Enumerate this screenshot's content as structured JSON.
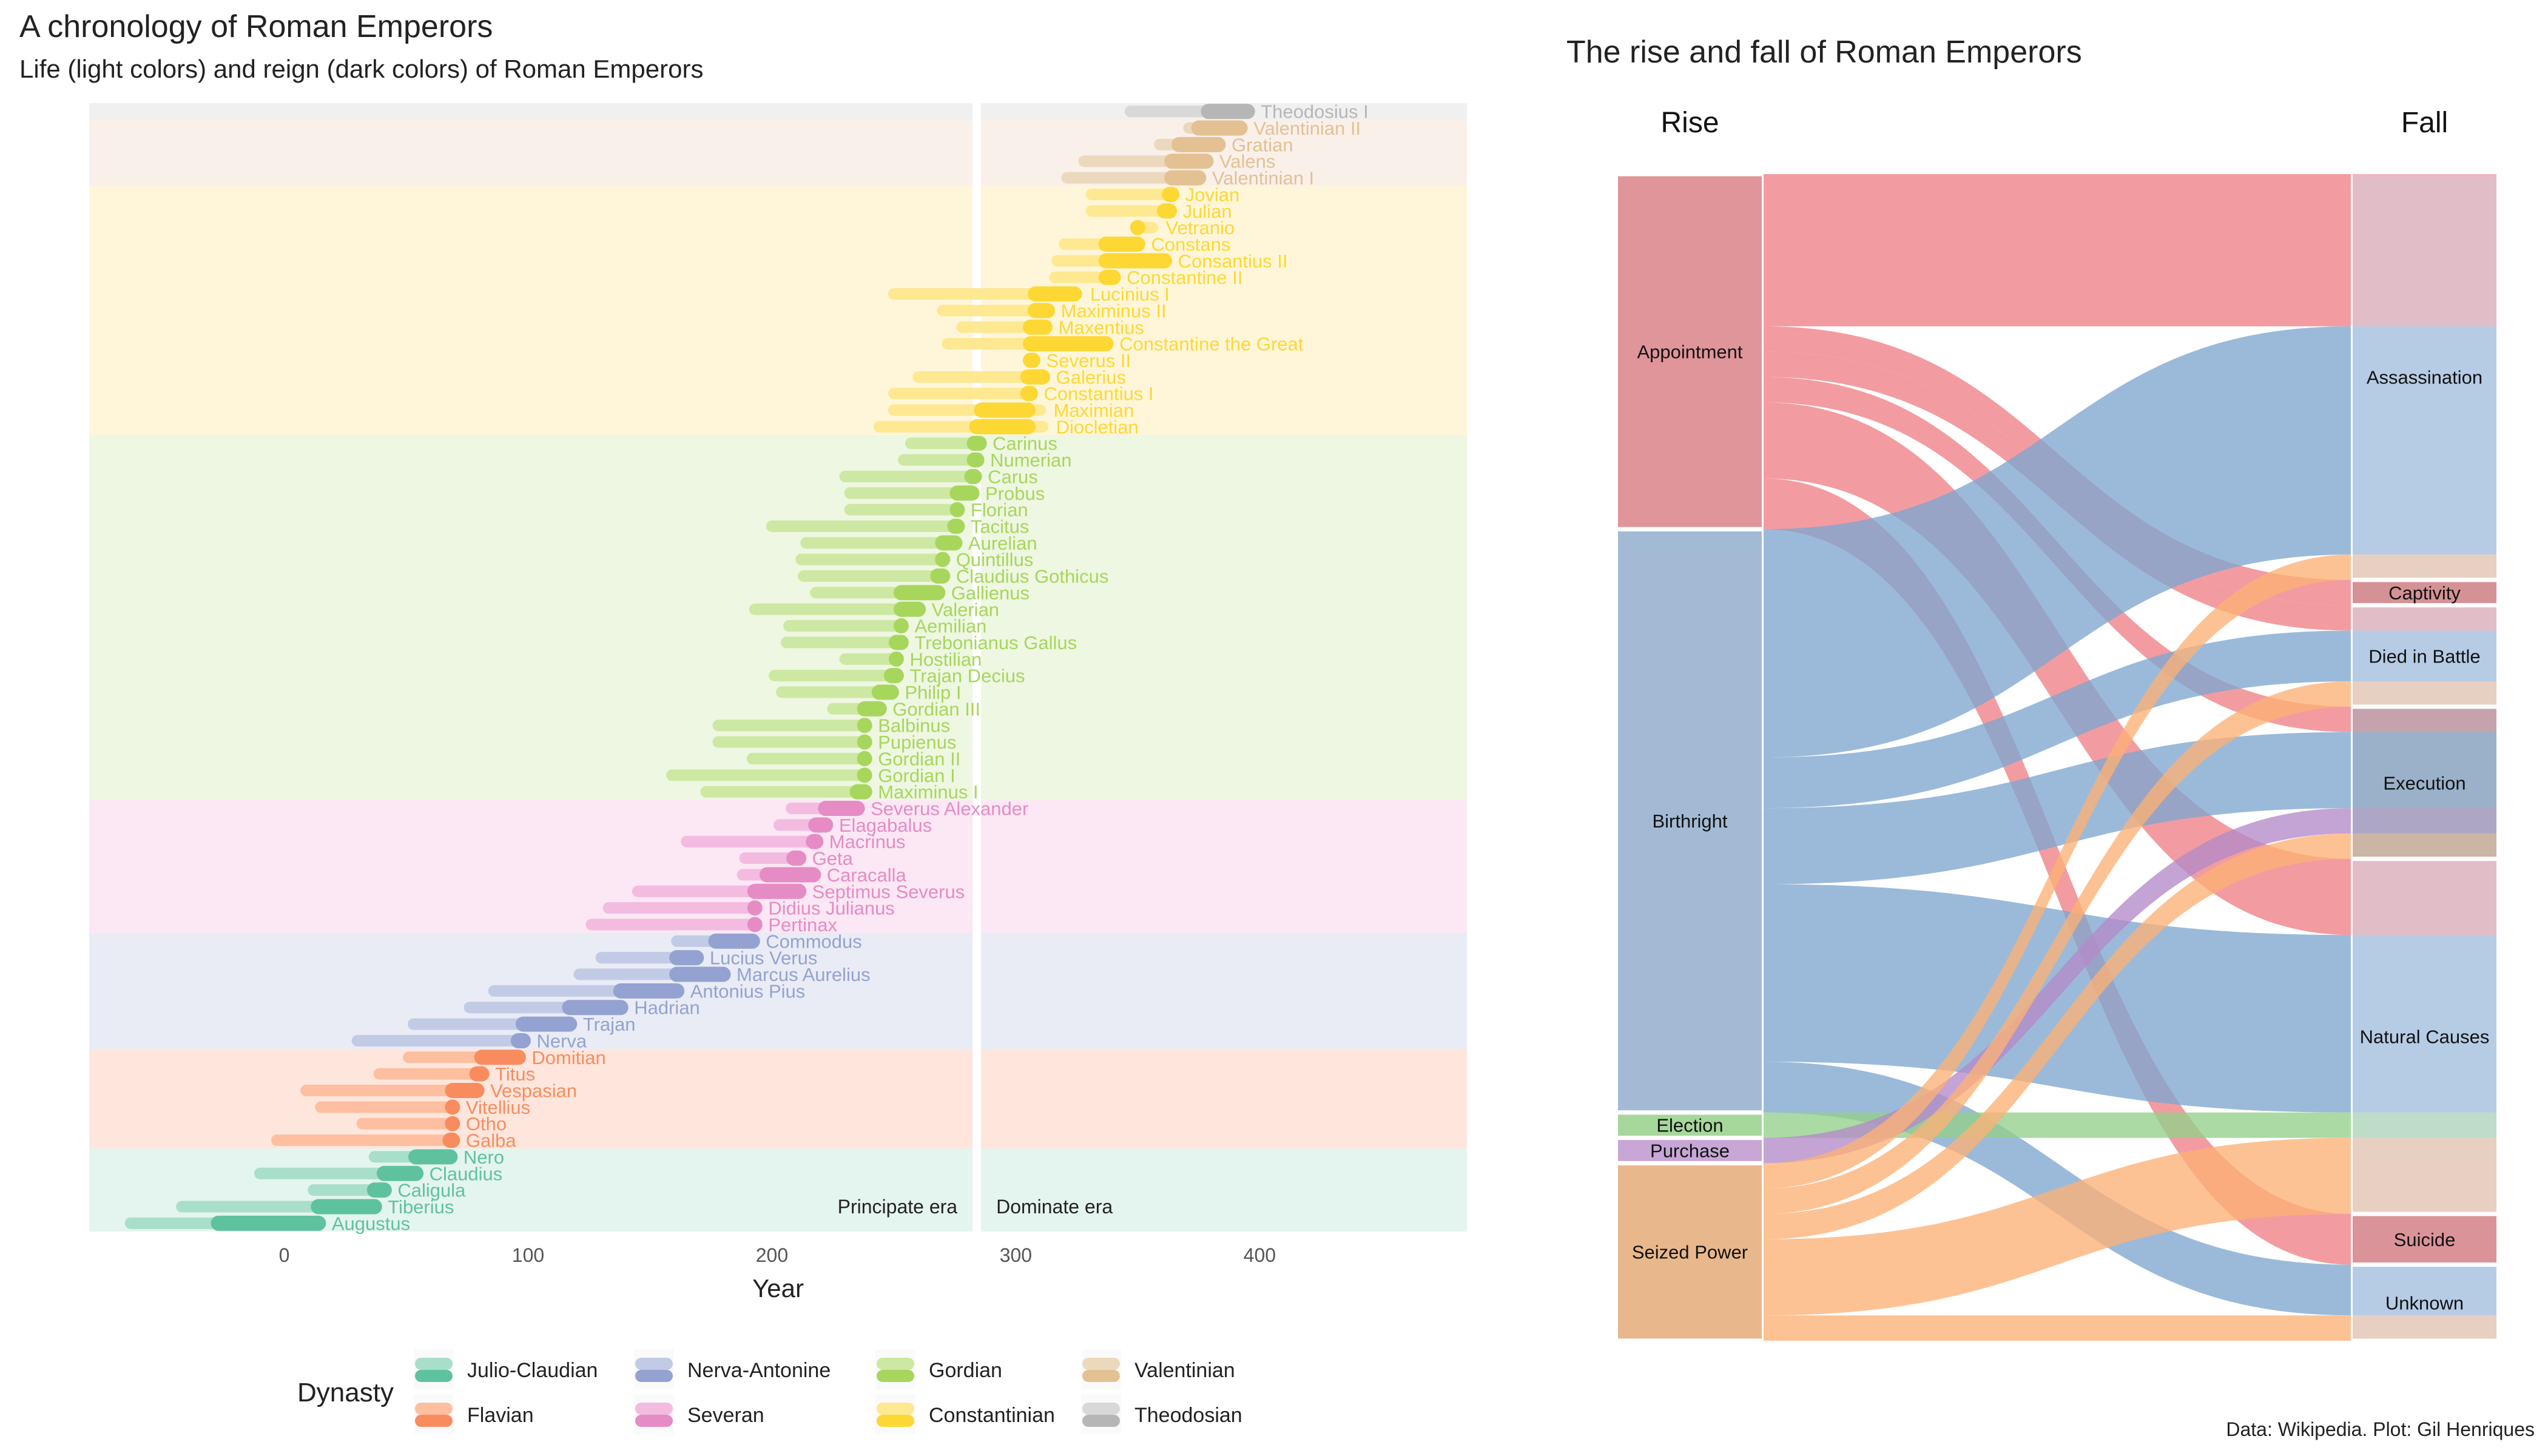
{
  "timeline": {
    "title": "A chronology of Roman Emperors",
    "subtitle": "Life (light colors) and reign (dark colors) of Roman Emperors",
    "xlabel": "Year",
    "x_ticks": [
      0,
      100,
      200,
      300,
      400
    ],
    "eras": [
      {
        "label": "Principate era",
        "start": -70,
        "end": 284
      },
      {
        "label": "Dominate era",
        "start": 284,
        "end": 485
      }
    ],
    "legend_title": "Dynasty",
    "dynasties": [
      {
        "name": "Julio-Claudian",
        "light": "#a8dfcb",
        "dark": "#5fc29f",
        "band": "#e4f4ee"
      },
      {
        "name": "Flavian",
        "light": "#fdbf9f",
        "dark": "#f98c5f",
        "band": "#fee6dc"
      },
      {
        "name": "Nerva-Antonine",
        "light": "#c2cbe6",
        "dark": "#94a2d1",
        "band": "#e9ecf5"
      },
      {
        "name": "Severan",
        "light": "#f3bbdf",
        "dark": "#e58cc4",
        "band": "#fce7f4"
      },
      {
        "name": "Gordian",
        "light": "#cde8a2",
        "dark": "#a7d65c",
        "band": "#eef7e1"
      },
      {
        "name": "Constantinian",
        "light": "#fee891",
        "dark": "#fdd834",
        "band": "#fff6d9"
      },
      {
        "name": "Valentinian",
        "light": "#ecd9bd",
        "dark": "#e3c193",
        "band": "#faf0ea"
      },
      {
        "name": "Theodosian",
        "light": "#d8d8d8",
        "dark": "#b6b6b6",
        "band": "#f0f0f0"
      }
    ],
    "emperors": [
      {
        "name": "Augustus",
        "dynasty": 0,
        "birth": -63,
        "death": 14,
        "reign_start": -27,
        "reign_end": 14
      },
      {
        "name": "Tiberius",
        "dynasty": 0,
        "birth": -42,
        "death": 37,
        "reign_start": 14,
        "reign_end": 37
      },
      {
        "name": "Caligula",
        "dynasty": 0,
        "birth": 12,
        "death": 41,
        "reign_start": 37,
        "reign_end": 41
      },
      {
        "name": "Claudius",
        "dynasty": 0,
        "birth": -10,
        "death": 54,
        "reign_start": 41,
        "reign_end": 54
      },
      {
        "name": "Nero",
        "dynasty": 0,
        "birth": 37,
        "death": 68,
        "reign_start": 54,
        "reign_end": 68
      },
      {
        "name": "Galba",
        "dynasty": 1,
        "birth": -3,
        "death": 69,
        "reign_start": 68,
        "reign_end": 69
      },
      {
        "name": "Otho",
        "dynasty": 1,
        "birth": 32,
        "death": 69,
        "reign_start": 69,
        "reign_end": 69
      },
      {
        "name": "Vitellius",
        "dynasty": 1,
        "birth": 15,
        "death": 69,
        "reign_start": 69,
        "reign_end": 69
      },
      {
        "name": "Vespasian",
        "dynasty": 1,
        "birth": 9,
        "death": 79,
        "reign_start": 69,
        "reign_end": 79
      },
      {
        "name": "Titus",
        "dynasty": 1,
        "birth": 39,
        "death": 81,
        "reign_start": 79,
        "reign_end": 81
      },
      {
        "name": "Domitian",
        "dynasty": 1,
        "birth": 51,
        "death": 96,
        "reign_start": 81,
        "reign_end": 96
      },
      {
        "name": "Nerva",
        "dynasty": 2,
        "birth": 30,
        "death": 98,
        "reign_start": 96,
        "reign_end": 98
      },
      {
        "name": "Trajan",
        "dynasty": 2,
        "birth": 53,
        "death": 117,
        "reign_start": 98,
        "reign_end": 117
      },
      {
        "name": "Hadrian",
        "dynasty": 2,
        "birth": 76,
        "death": 138,
        "reign_start": 117,
        "reign_end": 138
      },
      {
        "name": "Antonius Pius",
        "dynasty": 2,
        "birth": 86,
        "death": 161,
        "reign_start": 138,
        "reign_end": 161
      },
      {
        "name": "Marcus Aurelius",
        "dynasty": 2,
        "birth": 121,
        "death": 180,
        "reign_start": 161,
        "reign_end": 180
      },
      {
        "name": "Lucius Verus",
        "dynasty": 2,
        "birth": 130,
        "death": 169,
        "reign_start": 161,
        "reign_end": 169
      },
      {
        "name": "Commodus",
        "dynasty": 2,
        "birth": 161,
        "death": 192,
        "reign_start": 177,
        "reign_end": 192
      },
      {
        "name": "Pertinax",
        "dynasty": 3,
        "birth": 126,
        "death": 193,
        "reign_start": 193,
        "reign_end": 193
      },
      {
        "name": "Didius Julianus",
        "dynasty": 3,
        "birth": 133,
        "death": 193,
        "reign_start": 193,
        "reign_end": 193
      },
      {
        "name": "Septimus Severus",
        "dynasty": 3,
        "birth": 145,
        "death": 211,
        "reign_start": 193,
        "reign_end": 211
      },
      {
        "name": "Caracalla",
        "dynasty": 3,
        "birth": 188,
        "death": 217,
        "reign_start": 198,
        "reign_end": 217
      },
      {
        "name": "Geta",
        "dynasty": 3,
        "birth": 189,
        "death": 211,
        "reign_start": 209,
        "reign_end": 211
      },
      {
        "name": "Macrinus",
        "dynasty": 3,
        "birth": 165,
        "death": 218,
        "reign_start": 217,
        "reign_end": 218
      },
      {
        "name": "Elagabalus",
        "dynasty": 3,
        "birth": 203,
        "death": 222,
        "reign_start": 218,
        "reign_end": 222
      },
      {
        "name": "Severus Alexander",
        "dynasty": 3,
        "birth": 208,
        "death": 235,
        "reign_start": 222,
        "reign_end": 235
      },
      {
        "name": "Maximinus I",
        "dynasty": 4,
        "birth": 173,
        "death": 238,
        "reign_start": 235,
        "reign_end": 238
      },
      {
        "name": "Gordian I",
        "dynasty": 4,
        "birth": 159,
        "death": 238,
        "reign_start": 238,
        "reign_end": 238
      },
      {
        "name": "Gordian II",
        "dynasty": 4,
        "birth": 192,
        "death": 238,
        "reign_start": 238,
        "reign_end": 238
      },
      {
        "name": "Pupienus",
        "dynasty": 4,
        "birth": 178,
        "death": 238,
        "reign_start": 238,
        "reign_end": 238
      },
      {
        "name": "Balbinus",
        "dynasty": 4,
        "birth": 178,
        "death": 238,
        "reign_start": 238,
        "reign_end": 238
      },
      {
        "name": "Gordian III",
        "dynasty": 4,
        "birth": 225,
        "death": 244,
        "reign_start": 238,
        "reign_end": 244
      },
      {
        "name": "Philip I",
        "dynasty": 4,
        "birth": 204,
        "death": 249,
        "reign_start": 244,
        "reign_end": 249
      },
      {
        "name": "Trajan Decius",
        "dynasty": 4,
        "birth": 201,
        "death": 251,
        "reign_start": 249,
        "reign_end": 251
      },
      {
        "name": "Hostilian",
        "dynasty": 4,
        "birth": 230,
        "death": 251,
        "reign_start": 251,
        "reign_end": 251
      },
      {
        "name": "Trebonianus Gallus",
        "dynasty": 4,
        "birth": 206,
        "death": 253,
        "reign_start": 251,
        "reign_end": 253
      },
      {
        "name": "Aemilian",
        "dynasty": 4,
        "birth": 207,
        "death": 253,
        "reign_start": 253,
        "reign_end": 253
      },
      {
        "name": "Valerian",
        "dynasty": 4,
        "birth": 193,
        "death": 260,
        "reign_start": 253,
        "reign_end": 260
      },
      {
        "name": "Gallienus",
        "dynasty": 4,
        "birth": 218,
        "death": 268,
        "reign_start": 253,
        "reign_end": 268
      },
      {
        "name": "Claudius Gothicus",
        "dynasty": 4,
        "birth": 213,
        "death": 270,
        "reign_start": 268,
        "reign_end": 270
      },
      {
        "name": "Quintillus",
        "dynasty": 4,
        "birth": 212,
        "death": 270,
        "reign_start": 270,
        "reign_end": 270
      },
      {
        "name": "Aurelian",
        "dynasty": 4,
        "birth": 214,
        "death": 275,
        "reign_start": 270,
        "reign_end": 275
      },
      {
        "name": "Tacitus",
        "dynasty": 4,
        "birth": 200,
        "death": 276,
        "reign_start": 275,
        "reign_end": 276
      },
      {
        "name": "Florian",
        "dynasty": 4,
        "birth": 232,
        "death": 276,
        "reign_start": 276,
        "reign_end": 276
      },
      {
        "name": "Probus",
        "dynasty": 4,
        "birth": 232,
        "death": 282,
        "reign_start": 276,
        "reign_end": 282
      },
      {
        "name": "Carus",
        "dynasty": 4,
        "birth": 230,
        "death": 283,
        "reign_start": 282,
        "reign_end": 283
      },
      {
        "name": "Numerian",
        "dynasty": 4,
        "birth": 254,
        "death": 284,
        "reign_start": 283,
        "reign_end": 284
      },
      {
        "name": "Carinus",
        "dynasty": 4,
        "birth": 257,
        "death": 285,
        "reign_start": 283,
        "reign_end": 285
      },
      {
        "name": "Diocletian",
        "dynasty": 5,
        "birth": 244,
        "death": 311,
        "reign_start": 284,
        "reign_end": 305
      },
      {
        "name": "Maximian",
        "dynasty": 5,
        "birth": 250,
        "death": 310,
        "reign_start": 286,
        "reign_end": 305
      },
      {
        "name": "Constantius I",
        "dynasty": 5,
        "birth": 250,
        "death": 306,
        "reign_start": 305,
        "reign_end": 306
      },
      {
        "name": "Galerius",
        "dynasty": 5,
        "birth": 260,
        "death": 311,
        "reign_start": 305,
        "reign_end": 311
      },
      {
        "name": "Severus II",
        "dynasty": 5,
        "birth": 306,
        "death": 307,
        "reign_start": 306,
        "reign_end": 307
      },
      {
        "name": "Constantine the Great",
        "dynasty": 5,
        "birth": 272,
        "death": 337,
        "reign_start": 306,
        "reign_end": 337
      },
      {
        "name": "Maxentius",
        "dynasty": 5,
        "birth": 278,
        "death": 312,
        "reign_start": 306,
        "reign_end": 312
      },
      {
        "name": "Maximinus II",
        "dynasty": 5,
        "birth": 270,
        "death": 313,
        "reign_start": 308,
        "reign_end": 313
      },
      {
        "name": "Lucinius I",
        "dynasty": 5,
        "birth": 250,
        "death": 325,
        "reign_start": 308,
        "reign_end": 324
      },
      {
        "name": "Constantine II",
        "dynasty": 5,
        "birth": 316,
        "death": 340,
        "reign_start": 337,
        "reign_end": 340
      },
      {
        "name": "Consantius II",
        "dynasty": 5,
        "birth": 317,
        "death": 361,
        "reign_start": 337,
        "reign_end": 361
      },
      {
        "name": "Constans",
        "dynasty": 5,
        "birth": 320,
        "death": 350,
        "reign_start": 337,
        "reign_end": 350
      },
      {
        "name": "Vetranio",
        "dynasty": 5,
        "birth": 350,
        "death": 356,
        "reign_start": 350,
        "reign_end": 350
      },
      {
        "name": "Julian",
        "dynasty": 5,
        "birth": 331,
        "death": 363,
        "reign_start": 361,
        "reign_end": 363
      },
      {
        "name": "Jovian",
        "dynasty": 5,
        "birth": 331,
        "death": 364,
        "reign_start": 363,
        "reign_end": 364
      },
      {
        "name": "Valentinian I",
        "dynasty": 6,
        "birth": 321,
        "death": 375,
        "reign_start": 364,
        "reign_end": 375
      },
      {
        "name": "Valens",
        "dynasty": 6,
        "birth": 328,
        "death": 378,
        "reign_start": 364,
        "reign_end": 378
      },
      {
        "name": "Gratian",
        "dynasty": 6,
        "birth": 359,
        "death": 383,
        "reign_start": 367,
        "reign_end": 383
      },
      {
        "name": "Valentinian II",
        "dynasty": 6,
        "birth": 371,
        "death": 392,
        "reign_start": 375,
        "reign_end": 392
      },
      {
        "name": "Theodosius I",
        "dynasty": 7,
        "birth": 347,
        "death": 395,
        "reign_start": 379,
        "reign_end": 395
      }
    ]
  },
  "alluvial": {
    "title": "The rise and fall of Roman Emperors",
    "rise_label": "Rise",
    "fall_label": "Fall",
    "rise_categories": [
      {
        "name": "Appointment",
        "color": "#e0959a",
        "flow": "#ee8087"
      },
      {
        "name": "Birthright",
        "color": "#a3bad4",
        "flow": "#7fa6d0"
      },
      {
        "name": "Election",
        "color": "#a6d79b",
        "flow": "#93d08a"
      },
      {
        "name": "Purchase",
        "color": "#c8a6d6",
        "flow": "#b38bc8"
      },
      {
        "name": "Seized Power",
        "color": "#e8b88c",
        "flow": "#fdb176"
      }
    ],
    "fall_categories": [
      {
        "name": "Assassination",
        "color": "#bcd1e8"
      },
      {
        "name": "Captivity",
        "color": "#9c5558"
      },
      {
        "name": "Died in Battle",
        "color": "#bcd1e8"
      },
      {
        "name": "Execution",
        "color": "#6d8399"
      },
      {
        "name": "Natural Causes",
        "color": "#bcd1e8"
      },
      {
        "name": "Suicide",
        "color": "#a85c62"
      },
      {
        "name": "Unknown",
        "color": "#bcd1e8"
      }
    ],
    "flows": [
      {
        "rise": "Appointment",
        "fall": "Assassination",
        "count": 6
      },
      {
        "rise": "Appointment",
        "fall": "Captivity",
        "count": 1
      },
      {
        "rise": "Appointment",
        "fall": "Died in Battle",
        "count": 1
      },
      {
        "rise": "Appointment",
        "fall": "Execution",
        "count": 1
      },
      {
        "rise": "Appointment",
        "fall": "Natural Causes",
        "count": 3
      },
      {
        "rise": "Appointment",
        "fall": "Suicide",
        "count": 2
      },
      {
        "rise": "Birthright",
        "fall": "Assassination",
        "count": 9
      },
      {
        "rise": "Birthright",
        "fall": "Died in Battle",
        "count": 2
      },
      {
        "rise": "Birthright",
        "fall": "Execution",
        "count": 3
      },
      {
        "rise": "Birthright",
        "fall": "Natural Causes",
        "count": 7
      },
      {
        "rise": "Birthright",
        "fall": "Unknown",
        "count": 2
      },
      {
        "rise": "Election",
        "fall": "Natural Causes",
        "count": 1
      },
      {
        "rise": "Purchase",
        "fall": "Execution",
        "count": 1
      },
      {
        "rise": "Seized Power",
        "fall": "Assassination",
        "count": 1
      },
      {
        "rise": "Seized Power",
        "fall": "Died in Battle",
        "count": 1
      },
      {
        "rise": "Seized Power",
        "fall": "Execution",
        "count": 1
      },
      {
        "rise": "Seized Power",
        "fall": "Natural Causes",
        "count": 3
      },
      {
        "rise": "Seized Power",
        "fall": "Unknown",
        "count": 1
      }
    ]
  },
  "caption": "Data: Wikipedia. Plot: Gil Henriques",
  "chart_data": [
    {
      "type": "range-bar",
      "title": "A chronology of Roman Emperors",
      "subtitle": "Life (light colors) and reign (dark colors) of Roman Emperors",
      "xlabel": "Year",
      "xlim": [
        -80,
        485
      ],
      "grid": false,
      "legend_title": "Dynasty",
      "legend_position": "bottom"
    },
    {
      "type": "alluvial",
      "title": "The rise and fall of Roman Emperors",
      "axes": [
        "Rise",
        "Fall"
      ]
    }
  ]
}
